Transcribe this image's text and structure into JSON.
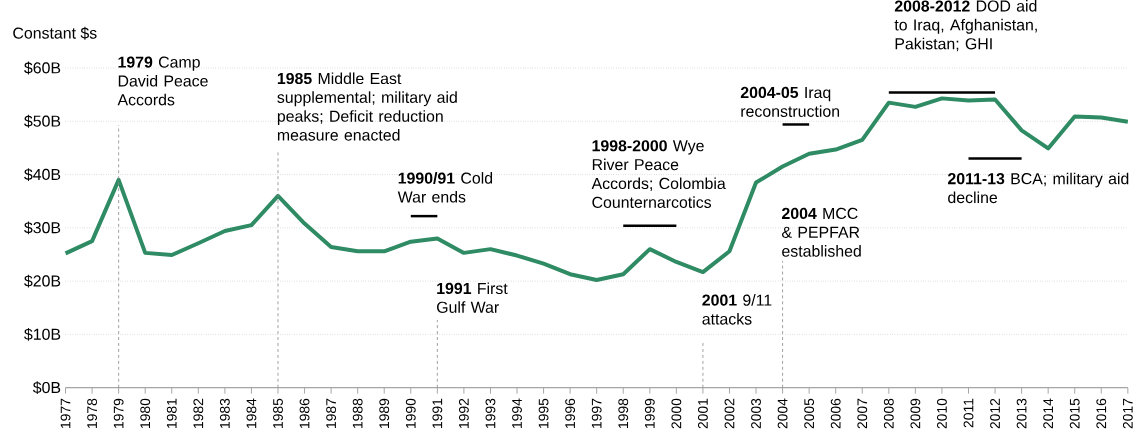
{
  "chart_data": {
    "type": "line",
    "ylabel": "Constant $s",
    "x": [
      1977,
      1978,
      1979,
      1980,
      1981,
      1982,
      1983,
      1984,
      1985,
      1986,
      1987,
      1988,
      1989,
      1990,
      1991,
      1992,
      1993,
      1994,
      1995,
      1996,
      1997,
      1998,
      1999,
      2000,
      2001,
      2002,
      2003,
      2004,
      2005,
      2006,
      2007,
      2008,
      2009,
      2010,
      2011,
      2012,
      2013,
      2014,
      2015,
      2016,
      2017
    ],
    "series": [
      {
        "color": "#2e8b63",
        "values": [
          25.2,
          27.5,
          39.0,
          25.3,
          24.9,
          27.1,
          29.4,
          30.5,
          36.0,
          30.8,
          26.4,
          25.6,
          25.6,
          27.4,
          28.0,
          25.3,
          26.0,
          24.8,
          23.3,
          21.3,
          20.2,
          21.3,
          26.0,
          23.6,
          21.7,
          25.6,
          38.5,
          41.5,
          43.9,
          44.7,
          46.5,
          53.5,
          52.7,
          54.3,
          53.9,
          54.1,
          48.3,
          44.9,
          50.9,
          50.7,
          49.9
        ]
      },
      {
        "type": "line",
        "color": "#000000",
        "x": [
          1990,
          1991
        ],
        "values": [
          32.2,
          32.2
        ]
      },
      {
        "type": "line",
        "color": "#000000",
        "x": [
          1998,
          2000
        ],
        "values": [
          30.4,
          30.4
        ]
      },
      {
        "type": "line",
        "color": "#000000",
        "x": [
          2004,
          2005
        ],
        "values": [
          49.4,
          49.4
        ]
      },
      {
        "type": "line",
        "color": "#000000",
        "x": [
          2008,
          2012
        ],
        "values": [
          55.4,
          55.4
        ]
      },
      {
        "type": "line",
        "color": "#000000",
        "x": [
          2011,
          2013
        ],
        "values": [
          43.0,
          43.0
        ]
      }
    ],
    "xlim": [
      1977,
      2017
    ],
    "xticks": [
      1977,
      1978,
      1979,
      1980,
      1981,
      1982,
      1983,
      1984,
      1985,
      1986,
      1987,
      1988,
      1989,
      1990,
      1991,
      1992,
      1993,
      1994,
      1995,
      1996,
      1997,
      1998,
      1999,
      2000,
      2001,
      2002,
      2003,
      2004,
      2005,
      2006,
      2007,
      2008,
      2009,
      2010,
      2011,
      2012,
      2013,
      2014,
      2015,
      2016,
      2017
    ],
    "ylim": [
      0,
      60
    ],
    "yticks": [
      {
        "value": 0,
        "label": "$0B"
      },
      {
        "value": 10,
        "label": "$10B"
      },
      {
        "value": 20,
        "label": "$20B"
      },
      {
        "value": 30,
        "label": "$30B"
      },
      {
        "value": 40,
        "label": "$40B"
      },
      {
        "value": 50,
        "label": "$50B"
      },
      {
        "value": 60,
        "label": "$60B"
      }
    ],
    "grid": "y",
    "marker": "none",
    "line_style": "solid",
    "ref_lines": [
      {
        "axis": "x",
        "value": 1979,
        "label": "**1979** Camp David Peace Accords",
        "color": "#888888",
        "line_style": "dashed"
      },
      {
        "axis": "x",
        "value": 1985,
        "label": "**1985** Middle East supplemental; military aid peaks; Deficit reduction measure enacted",
        "color": "#888888",
        "line_style": "dashed"
      },
      {
        "axis": "x",
        "value": 1991,
        "label": "**1991** First Gulf War",
        "color": "#888888",
        "line_style": "dashed"
      },
      {
        "axis": "x",
        "value": 2001,
        "label": "**2001** 9/11 attacks",
        "color": "#888888",
        "line_style": "dashed"
      },
      {
        "axis": "x",
        "value": 2004,
        "label": "**2004** MCC & PEPFAR established",
        "color": "#888888",
        "line_style": "dashed"
      }
    ],
    "annotations": [
      {
        "text": "**1990/91** Cold War ends",
        "x": 1990,
        "y": 32.2
      },
      {
        "text": "**1998-2000** Wye River Peace Accords; Colombia Counternarcotics",
        "x": 1998,
        "y": 30.4
      },
      {
        "text": "**2004-05** Iraq reconstruction",
        "x": 2004,
        "y": 49.4
      },
      {
        "text": "**2008-2012** DOD aid to Iraq, Afghanistan, Pakistan; GHI",
        "x": 2008,
        "y": 55.4
      },
      {
        "text": "**2011-13** BCA; military aid decline",
        "x": 2011,
        "y": 43.0
      }
    ]
  }
}
